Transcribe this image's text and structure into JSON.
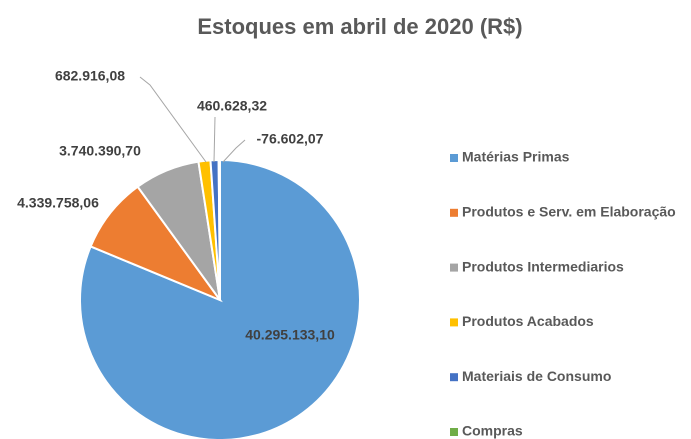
{
  "chart_data": {
    "type": "pie",
    "title": "Estoques em abril de 2020 (R$)",
    "categories": [
      "Matérias Primas",
      "Produtos e Serv. em Elaboração",
      "Produtos Intermediarios",
      "Produtos Acabados",
      "Materiais de Consumo",
      "Compras"
    ],
    "values": [
      40295133.1,
      4339758.06,
      3740390.7,
      682916.08,
      460628.32,
      -76602.07
    ],
    "value_labels": [
      "40.295.133,10",
      "4.339.758,06",
      "3.740.390,70",
      "682.916,08",
      "460.628,32",
      "-76.602,07"
    ],
    "colors": [
      "#5b9bd5",
      "#ed7d31",
      "#a5a5a5",
      "#ffc000",
      "#4472c4",
      "#70ad47"
    ],
    "legend": "right"
  }
}
